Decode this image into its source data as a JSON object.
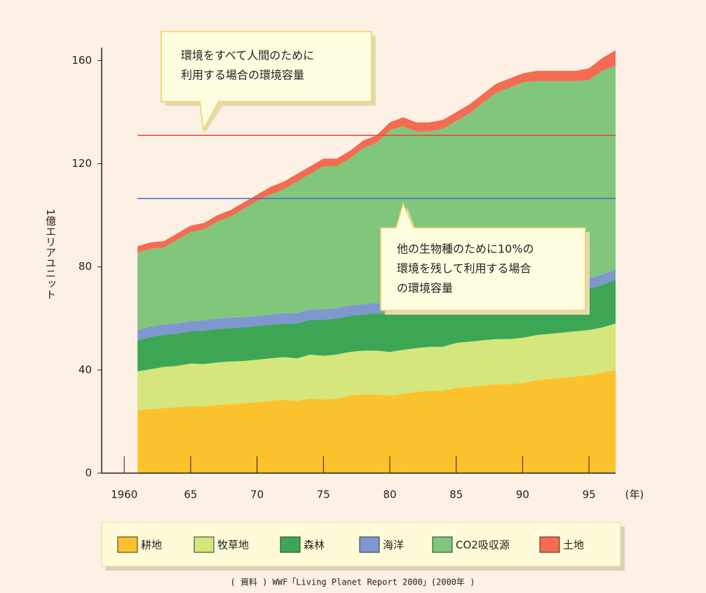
{
  "chart_data": {
    "type": "stacked_area",
    "ylabel": "1億エリアユニット",
    "xlabel": "(年)",
    "x": [
      1961,
      1962,
      1963,
      1964,
      1965,
      1966,
      1967,
      1968,
      1969,
      1970,
      1971,
      1972,
      1973,
      1974,
      1975,
      1976,
      1977,
      1978,
      1979,
      1980,
      1981,
      1982,
      1983,
      1984,
      1985,
      1986,
      1987,
      1988,
      1989,
      1990,
      1991,
      1992,
      1993,
      1994,
      1995,
      1996,
      1997
    ],
    "xlim": [
      1958.3,
      1997
    ],
    "xticks": [
      1960,
      {
        "value": 1965,
        "label": "65"
      },
      {
        "value": 1970,
        "label": "70"
      },
      {
        "value": 1975,
        "label": "75"
      },
      {
        "value": 1980,
        "label": "80"
      },
      {
        "value": 1985,
        "label": "85"
      },
      {
        "value": 1990,
        "label": "90"
      },
      {
        "value": 1995,
        "label": "95"
      }
    ],
    "ylim": [
      0,
      165
    ],
    "yticks": [
      0,
      40,
      80,
      120,
      160
    ],
    "series": [
      {
        "name": "耕地",
        "color": "#fcc22d",
        "values": [
          24.5,
          24.8,
          25.2,
          25.6,
          26,
          25.8,
          26.4,
          26.8,
          27,
          27.5,
          28,
          28.5,
          28,
          29,
          28.5,
          29,
          30,
          30.5,
          30.5,
          30,
          30.8,
          31.5,
          32,
          32,
          33,
          33.5,
          34,
          34.5,
          34.5,
          35,
          36,
          36.5,
          37,
          37.5,
          38,
          39,
          40
        ]
      },
      {
        "name": "牧草地",
        "color": "#d4e67c",
        "values": [
          15,
          15.5,
          16,
          16,
          16.5,
          16.5,
          16.5,
          16.5,
          16.5,
          16.5,
          16.5,
          16.5,
          16.5,
          17,
          17,
          17,
          17,
          17,
          17,
          17,
          17,
          17,
          17,
          17,
          17.5,
          17.5,
          17.5,
          17.5,
          17.5,
          17.5,
          17.5,
          17.5,
          17.5,
          17.5,
          17.5,
          17.5,
          18
        ]
      },
      {
        "name": "森林",
        "color": "#3ca655",
        "values": [
          12,
          12.5,
          12.5,
          12.5,
          12.5,
          13,
          13,
          13,
          13,
          13,
          13,
          13,
          13.5,
          13.5,
          14,
          14,
          14,
          14,
          14.5,
          14.5,
          14.5,
          14.5,
          14.5,
          14.5,
          15,
          15,
          15,
          15,
          15.5,
          15.5,
          15.5,
          16,
          16,
          16,
          16,
          16.5,
          17
        ]
      },
      {
        "name": "海洋",
        "color": "#7f96cf",
        "values": [
          4,
          4,
          4,
          4,
          4,
          4,
          4,
          4,
          4,
          4,
          4,
          4,
          4,
          4,
          4,
          4,
          4,
          4,
          4,
          4,
          4,
          4,
          4,
          4,
          4,
          4,
          4,
          4,
          4,
          4,
          4,
          4,
          4,
          4,
          4,
          4,
          4
        ]
      },
      {
        "name": "CO2吸収源",
        "color": "#80c77c",
        "values": [
          30,
          30.2,
          29.8,
          32.4,
          34.5,
          35.2,
          37.6,
          39.2,
          42,
          44.5,
          46.5,
          48,
          51,
          52.5,
          55.5,
          55,
          57,
          60.5,
          62,
          67.5,
          68.2,
          65.5,
          65,
          66,
          67,
          69.5,
          73,
          76.5,
          78,
          79.5,
          79,
          78,
          77.5,
          77,
          77,
          79,
          79
        ]
      },
      {
        "name": "土地",
        "color": "#f36c52",
        "values": [
          2.5,
          2.5,
          2.5,
          2.5,
          2.5,
          2.5,
          2.5,
          2.5,
          2.5,
          2.5,
          3,
          3,
          3,
          3,
          3,
          3,
          3,
          3,
          3,
          3,
          3.5,
          3.5,
          3.5,
          3.5,
          3.5,
          3.5,
          3.5,
          3.5,
          3.5,
          3.5,
          4,
          4,
          4,
          4,
          4.5,
          5,
          6
        ]
      }
    ],
    "reference_lines": [
      {
        "value": 131,
        "color": "#e8423a"
      },
      {
        "value": 106.5,
        "color": "#4a6bc4"
      }
    ],
    "annotations": [
      {
        "lines": [
          "環境をすべて人間のために",
          "利用する場合の環境容量"
        ]
      },
      {
        "lines": [
          "他の生物種のために10%の",
          "環境を残して利用する場合",
          "の環境容量"
        ]
      }
    ],
    "source": "( 資料 ) WWF「Living Planet Report 2000」(2000年 )"
  }
}
